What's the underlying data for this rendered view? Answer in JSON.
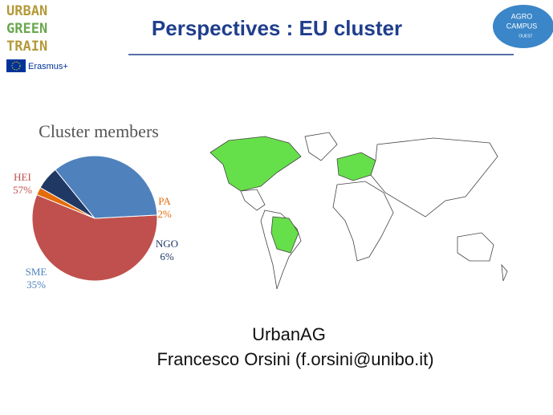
{
  "header": {
    "title": "Perspectives : EU cluster",
    "logo_left": [
      "URBAN",
      "GREEN",
      "TRAIN"
    ],
    "program": "Erasmus+",
    "logo_right": [
      "AGRO",
      "CAMPUS",
      "OUEST"
    ]
  },
  "chart_data": {
    "type": "pie",
    "title": "Cluster members",
    "categories": [
      "HEI",
      "PA",
      "NGO",
      "SME"
    ],
    "values": [
      57,
      2,
      6,
      35
    ],
    "value_labels": [
      "57%",
      "2%",
      "6%",
      "35%"
    ],
    "colors": [
      "#c0504d",
      "#e46c0a",
      "#1f3864",
      "#4f81bd"
    ]
  },
  "footer": {
    "group": "UrbanAG",
    "contact": "Francesco Orsini (f.orsini@unibo.it)"
  }
}
